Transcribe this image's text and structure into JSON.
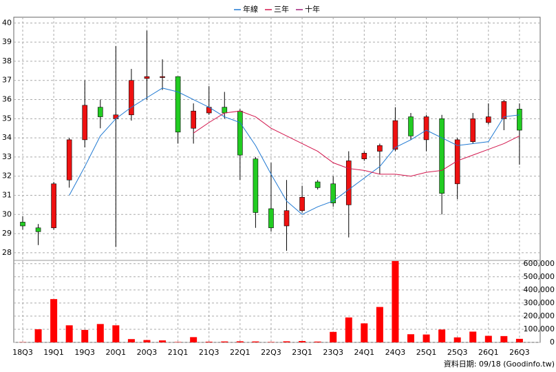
{
  "chart_data": [
    {
      "type": "candlestick",
      "categories": [
        "18Q3",
        null,
        "19Q1",
        null,
        "19Q3",
        null,
        "20Q1",
        null,
        "20Q3",
        null,
        "21Q1",
        null,
        "21Q3",
        null,
        "22Q1",
        null,
        "22Q3",
        null,
        "23Q1",
        null,
        "23Q3",
        null,
        "24Q1",
        null,
        "24Q3",
        null,
        "25Q1",
        null,
        "25Q3",
        null,
        "26Q1",
        null,
        "26Q3"
      ],
      "open": [
        29.6,
        29.3,
        29.3,
        31.8,
        33.9,
        35.6,
        35.0,
        35.2,
        37.1,
        37.15,
        37.2,
        34.5,
        35.3,
        35.6,
        35.4,
        32.9,
        30.3,
        29.4,
        30.2,
        31.7,
        31.6,
        30.5,
        32.9,
        33.3,
        33.4,
        35.1,
        33.9,
        35.0,
        31.6,
        33.8,
        34.8,
        35.0,
        35.5
      ],
      "high": [
        29.9,
        29.5,
        31.7,
        34.0,
        37.0,
        36.0,
        38.8,
        37.6,
        39.6,
        38.1,
        37.2,
        35.8,
        36.7,
        36.4,
        35.5,
        33.0,
        32.7,
        31.8,
        31.5,
        31.8,
        32.0,
        33.3,
        33.3,
        33.7,
        35.6,
        35.3,
        35.2,
        35.2,
        34.0,
        35.3,
        35.8,
        36.0,
        35.8
      ],
      "low": [
        29.2,
        28.4,
        29.2,
        31.4,
        33.5,
        34.5,
        28.3,
        34.9,
        36.0,
        36.5,
        33.7,
        33.7,
        35.2,
        35.0,
        31.8,
        29.3,
        29.1,
        28.1,
        30.1,
        31.3,
        30.4,
        28.8,
        32.8,
        32.1,
        33.3,
        33.9,
        33.3,
        30.0,
        30.8,
        33.7,
        34.7,
        34.4,
        32.6
      ],
      "close": [
        29.4,
        29.1,
        31.6,
        33.9,
        35.7,
        35.1,
        35.2,
        37.0,
        37.2,
        37.2,
        34.3,
        35.4,
        35.6,
        35.3,
        33.1,
        30.1,
        29.3,
        30.2,
        30.9,
        31.4,
        30.6,
        32.8,
        33.2,
        33.6,
        34.9,
        34.1,
        35.1,
        31.1,
        33.9,
        35.0,
        35.1,
        35.9,
        34.4
      ],
      "up_color": "#ee1111",
      "down_color": "#22cc22",
      "series": [
        {
          "name": "年線",
          "color": "#1e78d2",
          "values": [
            null,
            null,
            null,
            31.0,
            32.5,
            34.1,
            35.0,
            35.6,
            36.1,
            36.6,
            36.4,
            36.0,
            35.6,
            35.1,
            34.8,
            33.6,
            32.1,
            30.7,
            30.0,
            30.4,
            30.7,
            31.3,
            31.9,
            32.5,
            33.5,
            33.9,
            34.4,
            34.0,
            33.6,
            33.7,
            33.8,
            35.1,
            35.2
          ]
        },
        {
          "name": "三年",
          "color": "#d2144b",
          "values": [
            null,
            null,
            null,
            null,
            null,
            null,
            null,
            null,
            null,
            null,
            null,
            34.25,
            34.8,
            35.3,
            35.4,
            35.1,
            34.5,
            34.1,
            33.7,
            33.3,
            32.7,
            32.4,
            32.3,
            32.1,
            32.1,
            32.0,
            32.2,
            32.3,
            32.8,
            33.1,
            33.4,
            33.7,
            34.1
          ]
        },
        {
          "name": "十年",
          "color": "#a01e78",
          "values": [
            null,
            null,
            null,
            null,
            null,
            null,
            null,
            null,
            null,
            null,
            null,
            null,
            null,
            null,
            null,
            null,
            null,
            null,
            null,
            null,
            null,
            null,
            null,
            null,
            null,
            null,
            null,
            null,
            null,
            null,
            null,
            null,
            null
          ]
        }
      ],
      "ylim": [
        27.6,
        40.3
      ],
      "yticks": [
        28,
        29,
        30,
        31,
        32,
        33,
        34,
        35,
        36,
        37,
        38,
        39,
        40
      ],
      "grid": true
    },
    {
      "type": "bar",
      "values": [
        2000,
        100000,
        330000,
        130000,
        95000,
        140000,
        130000,
        25000,
        18000,
        15000,
        3000,
        40000,
        5000,
        7000,
        8000,
        7000,
        3000,
        8000,
        10000,
        6000,
        80000,
        190000,
        145000,
        270000,
        620000,
        62000,
        60000,
        98000,
        38000,
        82000,
        50000,
        48000,
        27000
      ],
      "color": "#ff0000",
      "ylim": [
        0,
        625000
      ],
      "yticks": [
        0,
        {
          "value": 100000,
          "label": "100,000"
        },
        {
          "value": 200000,
          "label": "200,000"
        },
        {
          "value": 300000,
          "label": "300,000"
        },
        {
          "value": 400000,
          "label": "400,000"
        },
        {
          "value": 500000,
          "label": "500,000"
        },
        {
          "value": 600000,
          "label": "600,000"
        }
      ],
      "grid": true
    }
  ],
  "footer": "資料日期: 09/18 (Goodinfo.tw)"
}
